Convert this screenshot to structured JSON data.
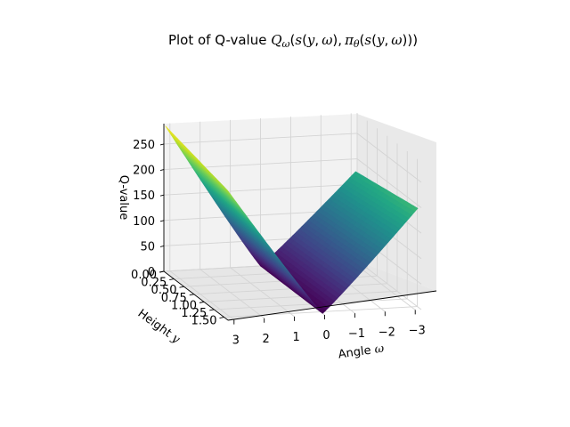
{
  "chart_data": {
    "type": "surface3d",
    "title": "Plot of Q-value ",
    "title_math": {
      "Q": "Q",
      "w": "ω",
      "pi": "π",
      "theta": "θ",
      "s": "s",
      "y": "y",
      "open": "(",
      "close": ")",
      "comma": ",",
      "comma2": ", "
    },
    "xlabel": "Angle ",
    "xlabel_sym": "ω",
    "ylabel": "Height ",
    "ylabel_sym": "y",
    "zlabel": "Q-value",
    "xticks": [
      "3",
      "2",
      "1",
      "0",
      "−1",
      "−2",
      "−3"
    ],
    "yticks": [
      "0.00",
      "0.25",
      "0.50",
      "0.75",
      "1.00",
      "1.25",
      "1.50"
    ],
    "zticks": [
      "0",
      "50",
      "100",
      "150",
      "200",
      "250"
    ],
    "xlim": [
      -3.2,
      3.2
    ],
    "ylim": [
      0,
      1.6
    ],
    "zlim": [
      0,
      290
    ],
    "colormap": "viridis",
    "surface_corners": {
      "angle_pos_height_low": 290,
      "angle_pos_height_high": 255,
      "angle_zero_min": 0,
      "angle_neg_height_low": 178,
      "angle_neg_height_high": 200
    }
  }
}
